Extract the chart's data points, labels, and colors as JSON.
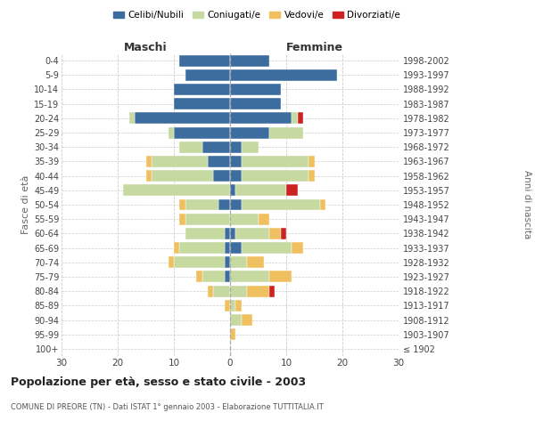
{
  "age_groups": [
    "100+",
    "95-99",
    "90-94",
    "85-89",
    "80-84",
    "75-79",
    "70-74",
    "65-69",
    "60-64",
    "55-59",
    "50-54",
    "45-49",
    "40-44",
    "35-39",
    "30-34",
    "25-29",
    "20-24",
    "15-19",
    "10-14",
    "5-9",
    "0-4"
  ],
  "birth_years": [
    "≤ 1902",
    "1903-1907",
    "1908-1912",
    "1913-1917",
    "1918-1922",
    "1923-1927",
    "1928-1932",
    "1933-1937",
    "1938-1942",
    "1943-1947",
    "1948-1952",
    "1953-1957",
    "1958-1962",
    "1963-1967",
    "1968-1972",
    "1973-1977",
    "1978-1982",
    "1983-1987",
    "1988-1992",
    "1993-1997",
    "1998-2002"
  ],
  "colors": {
    "celibi": "#3d6d9e",
    "coniugati": "#c5d9a0",
    "vedovi": "#f0c060",
    "divorziati": "#cc2222"
  },
  "maschi": {
    "celibi": [
      0,
      0,
      0,
      0,
      0,
      1,
      1,
      1,
      1,
      0,
      2,
      0,
      3,
      4,
      5,
      10,
      17,
      10,
      10,
      8,
      9
    ],
    "coniugati": [
      0,
      0,
      0,
      0,
      3,
      4,
      9,
      8,
      7,
      8,
      6,
      19,
      11,
      10,
      4,
      1,
      1,
      0,
      0,
      0,
      0
    ],
    "vedovi": [
      0,
      0,
      0,
      1,
      1,
      1,
      1,
      1,
      0,
      1,
      1,
      0,
      1,
      1,
      0,
      0,
      0,
      0,
      0,
      0,
      0
    ],
    "divorziati": [
      0,
      0,
      0,
      0,
      0,
      0,
      0,
      0,
      0,
      0,
      0,
      0,
      0,
      0,
      0,
      0,
      0,
      0,
      0,
      0,
      0
    ]
  },
  "femmine": {
    "celibi": [
      0,
      0,
      0,
      0,
      0,
      0,
      0,
      2,
      1,
      0,
      2,
      1,
      2,
      2,
      2,
      7,
      11,
      9,
      9,
      19,
      7
    ],
    "coniugati": [
      0,
      0,
      2,
      1,
      3,
      7,
      3,
      9,
      6,
      5,
      14,
      9,
      12,
      12,
      3,
      6,
      1,
      0,
      0,
      0,
      0
    ],
    "vedovi": [
      0,
      1,
      2,
      1,
      4,
      4,
      3,
      2,
      2,
      2,
      1,
      0,
      1,
      1,
      0,
      0,
      0,
      0,
      0,
      0,
      0
    ],
    "divorziati": [
      0,
      0,
      0,
      0,
      1,
      0,
      0,
      0,
      1,
      0,
      0,
      2,
      0,
      0,
      0,
      0,
      1,
      0,
      0,
      0,
      0
    ]
  },
  "xlim": 30,
  "title": "Popolazione per età, sesso e stato civile - 2003",
  "subtitle": "COMUNE DI PREORE (TN) - Dati ISTAT 1° gennaio 2003 - Elaborazione TUTTITALIA.IT",
  "ylabel_left": "Fasce di età",
  "ylabel_right": "Anni di nascita",
  "legend_labels": [
    "Celibi/Nubili",
    "Coniugati/e",
    "Vedovi/e",
    "Divorziati/e"
  ],
  "maschi_label": "Maschi",
  "femmine_label": "Femmine",
  "background_color": "#ffffff",
  "grid_color": "#cccccc"
}
